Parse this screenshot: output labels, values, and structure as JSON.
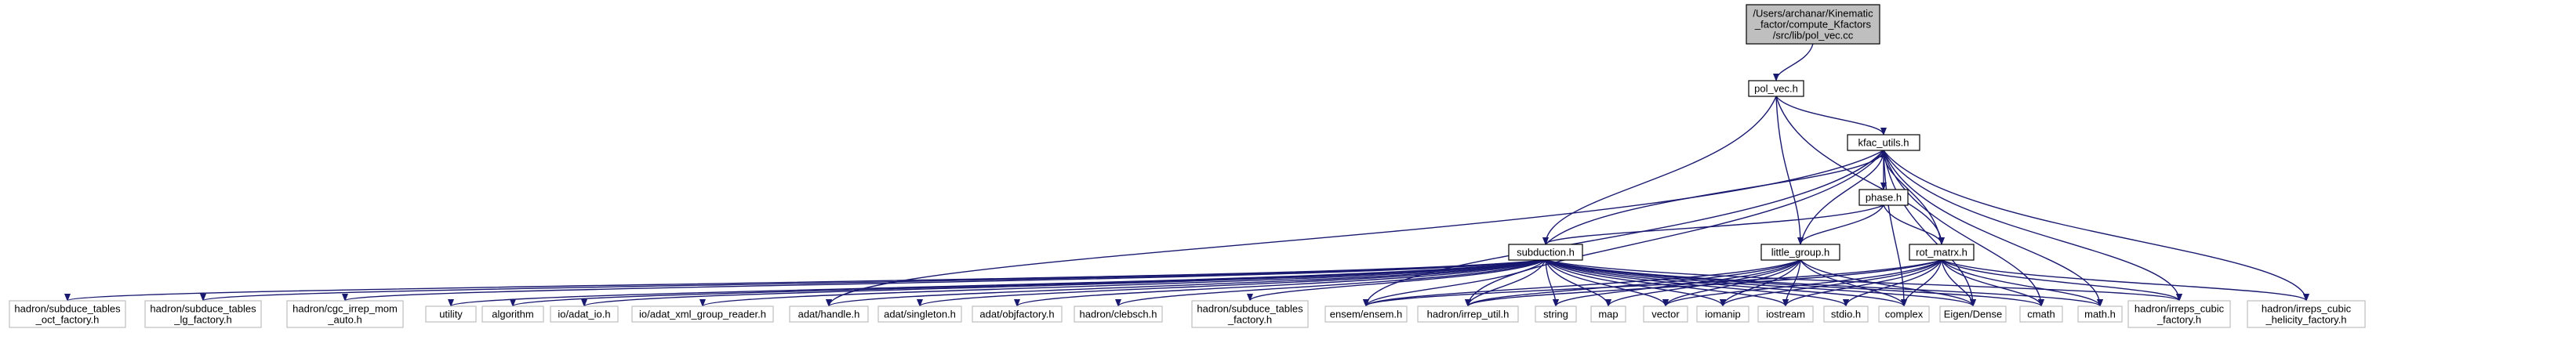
{
  "colors": {
    "edge": "#191970",
    "root_fill": "#bfbfbf",
    "root_stroke": "#000000",
    "internal_stroke": "#000000",
    "leaf_stroke": "#bfbfbf",
    "node_fill": "#ffffff"
  },
  "graph": {
    "nodes": [
      {
        "id": "root",
        "kind": "root",
        "lines": [
          "/Users/archanar/Kinematic",
          "_factor/compute_Kfactors",
          "/src/lib/pol_vec.cc"
        ]
      },
      {
        "id": "pol_vec",
        "kind": "internal",
        "lines": [
          "pol_vec.h"
        ]
      },
      {
        "id": "kfac_utils",
        "kind": "internal",
        "lines": [
          "kfac_utils.h"
        ]
      },
      {
        "id": "phase",
        "kind": "internal",
        "lines": [
          "phase.h"
        ]
      },
      {
        "id": "subduction",
        "kind": "internal",
        "lines": [
          "subduction.h"
        ]
      },
      {
        "id": "little_group",
        "kind": "internal",
        "lines": [
          "little_group.h"
        ]
      },
      {
        "id": "rot_matrx",
        "kind": "internal",
        "lines": [
          "rot_matrx.h"
        ]
      },
      {
        "id": "oct_factory",
        "kind": "leaf",
        "lines": [
          "hadron/subduce_tables",
          "_oct_factory.h"
        ]
      },
      {
        "id": "lg_factory",
        "kind": "leaf",
        "lines": [
          "hadron/subduce_tables",
          "_lg_factory.h"
        ]
      },
      {
        "id": "cgc_irrep",
        "kind": "leaf",
        "lines": [
          "hadron/cgc_irrep_mom",
          "_auto.h"
        ]
      },
      {
        "id": "utility",
        "kind": "leaf",
        "lines": [
          "utility"
        ]
      },
      {
        "id": "algorithm",
        "kind": "leaf",
        "lines": [
          "algorithm"
        ]
      },
      {
        "id": "adat_io",
        "kind": "leaf",
        "lines": [
          "io/adat_io.h"
        ]
      },
      {
        "id": "xml_reader",
        "kind": "leaf",
        "lines": [
          "io/adat_xml_group_reader.h"
        ]
      },
      {
        "id": "handle",
        "kind": "leaf",
        "lines": [
          "adat/handle.h"
        ]
      },
      {
        "id": "singleton",
        "kind": "leaf",
        "lines": [
          "adat/singleton.h"
        ]
      },
      {
        "id": "objfactory",
        "kind": "leaf",
        "lines": [
          "adat/objfactory.h"
        ]
      },
      {
        "id": "clebsch",
        "kind": "leaf",
        "lines": [
          "hadron/clebsch.h"
        ]
      },
      {
        "id": "st_factory",
        "kind": "leaf",
        "lines": [
          "hadron/subduce_tables",
          "_factory.h"
        ]
      },
      {
        "id": "ensem",
        "kind": "leaf",
        "lines": [
          "ensem/ensem.h"
        ]
      },
      {
        "id": "irrep_util",
        "kind": "leaf",
        "lines": [
          "hadron/irrep_util.h"
        ]
      },
      {
        "id": "string",
        "kind": "leaf",
        "lines": [
          "string"
        ]
      },
      {
        "id": "map",
        "kind": "leaf",
        "lines": [
          "map"
        ]
      },
      {
        "id": "vector",
        "kind": "leaf",
        "lines": [
          "vector"
        ]
      },
      {
        "id": "iomanip",
        "kind": "leaf",
        "lines": [
          "iomanip"
        ]
      },
      {
        "id": "iostream",
        "kind": "leaf",
        "lines": [
          "iostream"
        ]
      },
      {
        "id": "stdio",
        "kind": "leaf",
        "lines": [
          "stdio.h"
        ]
      },
      {
        "id": "complex",
        "kind": "leaf",
        "lines": [
          "complex"
        ]
      },
      {
        "id": "eigen",
        "kind": "leaf",
        "lines": [
          "Eigen/Dense"
        ]
      },
      {
        "id": "cmath",
        "kind": "leaf",
        "lines": [
          "cmath"
        ]
      },
      {
        "id": "mathh",
        "kind": "leaf",
        "lines": [
          "math.h"
        ]
      },
      {
        "id": "irreps_cubic",
        "kind": "leaf",
        "lines": [
          "hadron/irreps_cubic",
          "_factory.h"
        ]
      },
      {
        "id": "irreps_hel",
        "kind": "leaf",
        "lines": [
          "hadron/irreps_cubic",
          "_helicity_factory.h"
        ]
      }
    ],
    "edges": [
      [
        "root",
        "pol_vec"
      ],
      [
        "pol_vec",
        "kfac_utils"
      ],
      [
        "pol_vec",
        "subduction"
      ],
      [
        "pol_vec",
        "little_group"
      ],
      [
        "pol_vec",
        "rot_matrx"
      ],
      [
        "kfac_utils",
        "phase"
      ],
      [
        "kfac_utils",
        "eigen"
      ],
      [
        "kfac_utils",
        "cmath"
      ],
      [
        "kfac_utils",
        "mathh"
      ],
      [
        "kfac_utils",
        "irreps_cubic"
      ],
      [
        "kfac_utils",
        "irreps_hel"
      ],
      [
        "kfac_utils",
        "complex"
      ],
      [
        "kfac_utils",
        "handle"
      ],
      [
        "kfac_utils",
        "ensem"
      ],
      [
        "kfac_utils",
        "irrep_util"
      ],
      [
        "phase",
        "subduction"
      ],
      [
        "phase",
        "little_group"
      ],
      [
        "phase",
        "rot_matrx"
      ],
      [
        "subduction",
        "kfac_utils"
      ],
      [
        "subduction",
        "oct_factory"
      ],
      [
        "subduction",
        "lg_factory"
      ],
      [
        "subduction",
        "cgc_irrep"
      ],
      [
        "subduction",
        "utility"
      ],
      [
        "subduction",
        "algorithm"
      ],
      [
        "subduction",
        "adat_io"
      ],
      [
        "subduction",
        "xml_reader"
      ],
      [
        "subduction",
        "handle"
      ],
      [
        "subduction",
        "singleton"
      ],
      [
        "subduction",
        "objfactory"
      ],
      [
        "subduction",
        "clebsch"
      ],
      [
        "subduction",
        "st_factory"
      ],
      [
        "subduction",
        "ensem"
      ],
      [
        "subduction",
        "irrep_util"
      ],
      [
        "subduction",
        "string"
      ],
      [
        "subduction",
        "map"
      ],
      [
        "subduction",
        "vector"
      ],
      [
        "subduction",
        "iostream"
      ],
      [
        "subduction",
        "iomanip"
      ],
      [
        "subduction",
        "stdio"
      ],
      [
        "subduction",
        "complex"
      ],
      [
        "subduction",
        "eigen"
      ],
      [
        "subduction",
        "cmath"
      ],
      [
        "subduction",
        "mathh"
      ],
      [
        "subduction",
        "irreps_cubic"
      ],
      [
        "little_group",
        "kfac_utils"
      ],
      [
        "little_group",
        "ensem"
      ],
      [
        "little_group",
        "irrep_util"
      ],
      [
        "little_group",
        "string"
      ],
      [
        "little_group",
        "map"
      ],
      [
        "little_group",
        "vector"
      ],
      [
        "little_group",
        "iomanip"
      ],
      [
        "little_group",
        "iostream"
      ],
      [
        "little_group",
        "eigen"
      ],
      [
        "little_group",
        "complex"
      ],
      [
        "rot_matrx",
        "kfac_utils"
      ],
      [
        "rot_matrx",
        "vector"
      ],
      [
        "rot_matrx",
        "iomanip"
      ],
      [
        "rot_matrx",
        "iostream"
      ],
      [
        "rot_matrx",
        "stdio"
      ],
      [
        "rot_matrx",
        "complex"
      ],
      [
        "rot_matrx",
        "eigen"
      ],
      [
        "rot_matrx",
        "cmath"
      ],
      [
        "rot_matrx",
        "mathh"
      ],
      [
        "rot_matrx",
        "irreps_cubic"
      ],
      [
        "rot_matrx",
        "irreps_hel"
      ],
      [
        "rot_matrx",
        "irrep_util"
      ],
      [
        "rot_matrx",
        "ensem"
      ]
    ]
  }
}
